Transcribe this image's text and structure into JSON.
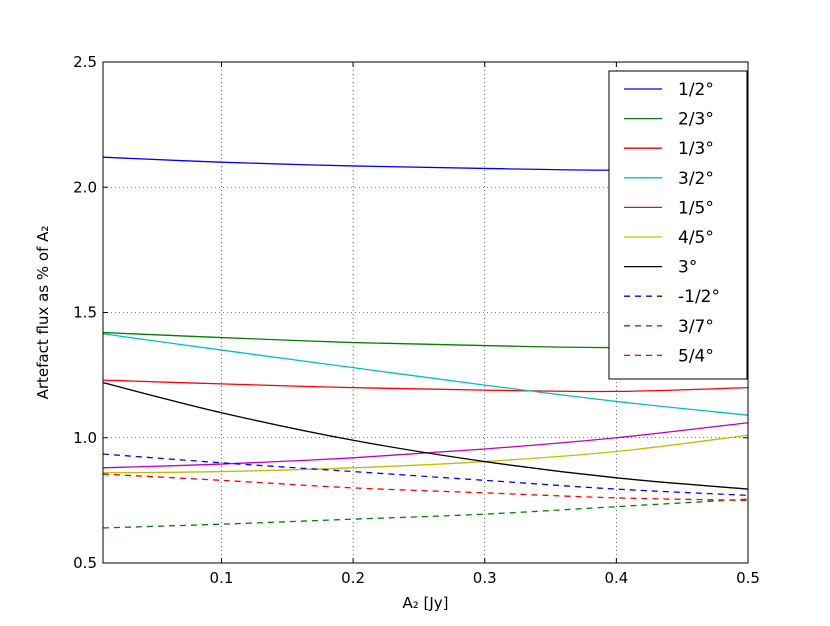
{
  "chart_data": {
    "type": "line",
    "title": "",
    "xlabel": "A₂ [Jy]",
    "ylabel": "Artefact flux as % of A₂",
    "xlim": [
      0.01,
      0.5
    ],
    "ylim": [
      0.5,
      2.5
    ],
    "xticks": [
      "0.1",
      "0.2",
      "0.3",
      "0.4",
      "0.5"
    ],
    "yticks": [
      "0.5",
      "1.0",
      "1.5",
      "2.0",
      "2.5"
    ],
    "grid": true,
    "legend_position": "top-right",
    "x": [
      0.01,
      0.1,
      0.2,
      0.3,
      0.4,
      0.5
    ],
    "series": [
      {
        "name": "1/2°",
        "color": "#0000ff",
        "dash": "solid",
        "values": [
          2.12,
          2.1,
          2.085,
          2.075,
          2.068,
          2.075
        ]
      },
      {
        "name": "2/3°",
        "color": "#008000",
        "dash": "solid",
        "values": [
          1.42,
          1.4,
          1.38,
          1.368,
          1.36,
          1.37
        ]
      },
      {
        "name": "1/3°",
        "color": "#ff0000",
        "dash": "solid",
        "values": [
          1.23,
          1.215,
          1.2,
          1.19,
          1.185,
          1.2
        ]
      },
      {
        "name": "3/2°",
        "color": "#00bfbf",
        "dash": "solid",
        "values": [
          1.415,
          1.35,
          1.28,
          1.21,
          1.145,
          1.09
        ]
      },
      {
        "name": "1/5°",
        "color": "#bf00bf",
        "dash": "solid",
        "values": [
          0.88,
          0.895,
          0.92,
          0.955,
          1.0,
          1.06
        ]
      },
      {
        "name": "4/5°",
        "color": "#bfbf00",
        "dash": "solid",
        "values": [
          0.86,
          0.865,
          0.88,
          0.905,
          0.945,
          1.01
        ]
      },
      {
        "name": "3°",
        "color": "#000000",
        "dash": "solid",
        "values": [
          1.22,
          1.1,
          0.99,
          0.905,
          0.84,
          0.795
        ]
      },
      {
        "name": "-1/2°",
        "color": "#0000ff",
        "dash": "dashed",
        "values": [
          0.935,
          0.9,
          0.865,
          0.83,
          0.795,
          0.77
        ]
      },
      {
        "name": "3/7°",
        "color": "#008000",
        "dash": "dashed",
        "values": [
          0.64,
          0.655,
          0.675,
          0.695,
          0.725,
          0.755
        ]
      },
      {
        "name": "5/4°",
        "color": "#ff0000",
        "dash": "dashed",
        "values": [
          0.855,
          0.83,
          0.8,
          0.78,
          0.76,
          0.75
        ]
      }
    ]
  }
}
